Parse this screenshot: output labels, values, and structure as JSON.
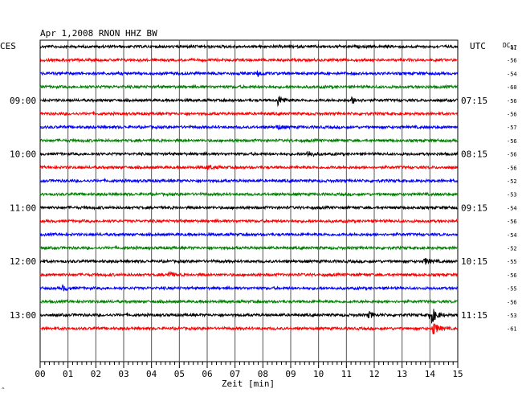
{
  "chart_data": {
    "type": "line",
    "title": "Apr 1,2008    RNON HHZ BW",
    "left_label": "CES",
    "right_label": "UTC",
    "dc_label": "DC",
    "dc_top_value": "61",
    "xlabel": "Zeit [min]",
    "xlim": [
      0,
      15
    ],
    "x_ticks": [
      "00",
      "01",
      "02",
      "03",
      "04",
      "05",
      "06",
      "07",
      "08",
      "09",
      "10",
      "11",
      "12",
      "13",
      "14",
      "15"
    ],
    "left_times": [
      {
        "row": 4,
        "label": "09:00"
      },
      {
        "row": 8,
        "label": "10:00"
      },
      {
        "row": 12,
        "label": "11:00"
      },
      {
        "row": 16,
        "label": "12:00"
      },
      {
        "row": 20,
        "label": "13:00"
      }
    ],
    "right_times": [
      {
        "row": 4,
        "label": "07:15"
      },
      {
        "row": 8,
        "label": "08:15"
      },
      {
        "row": 12,
        "label": "09:15"
      },
      {
        "row": 16,
        "label": "10:15"
      },
      {
        "row": 20,
        "label": "11:15"
      }
    ],
    "dc_values": [
      "-57",
      "-56",
      "-54",
      "-60",
      "-56",
      "-56",
      "-57",
      "-56",
      "-56",
      "-56",
      "-52",
      "-53",
      "-54",
      "-56",
      "-54",
      "-52",
      "-55",
      "-56",
      "-55",
      "-56",
      "-53",
      "-61"
    ],
    "trace_colors": [
      "#000000",
      "#ff0000",
      "#0000ff",
      "#008000"
    ],
    "events": [
      {
        "row": 4,
        "minute": 8.5,
        "amplitude": 8
      },
      {
        "row": 4,
        "minute": 11.2,
        "amplitude": 4
      },
      {
        "row": 2,
        "minute": 7.8,
        "amplitude": 3
      },
      {
        "row": 6,
        "minute": 8.5,
        "amplitude": 3
      },
      {
        "row": 8,
        "minute": 9.6,
        "amplitude": 4
      },
      {
        "row": 9,
        "minute": 6.0,
        "amplitude": 3
      },
      {
        "row": 16,
        "minute": 13.8,
        "amplitude": 4
      },
      {
        "row": 17,
        "minute": 4.6,
        "amplitude": 4
      },
      {
        "row": 18,
        "minute": 0.8,
        "amplitude": 3
      },
      {
        "row": 20,
        "minute": 11.8,
        "amplitude": 4
      },
      {
        "row": 20,
        "minute": 14.0,
        "amplitude": 14
      },
      {
        "row": 21,
        "minute": 14.1,
        "amplitude": 9
      }
    ]
  }
}
